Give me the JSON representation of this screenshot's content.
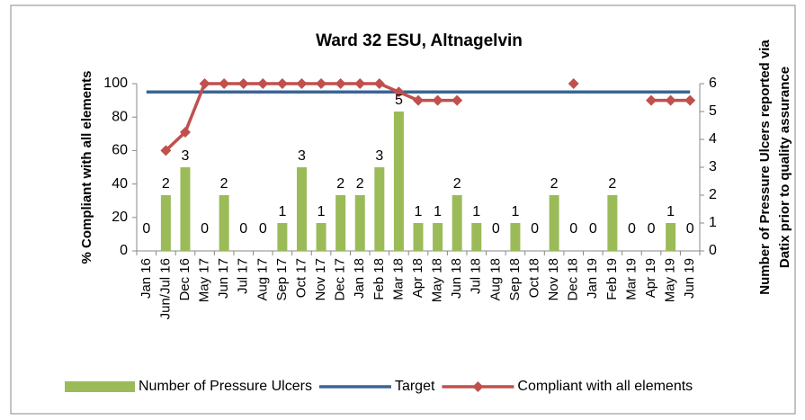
{
  "chart_data": {
    "type": "bar",
    "title": "Ward 32 ESU, Altnagelvin",
    "ylabel": "% Compliant with all elements",
    "y2label": [
      "Number of Pressure Ulcers reported via",
      "Datix prior to quality assurance"
    ],
    "categories": [
      "Jan 16",
      "Jun/Jul 16",
      "Dec 16",
      "May 17",
      "Jun 17",
      "Jul 17",
      "Aug 17",
      "Sep 17",
      "Oct 17",
      "Nov 17",
      "Dec 17",
      "Jan 18",
      "Feb 18",
      "Mar 18",
      "Apr 18",
      "May 18",
      "Jun 18",
      "Jul 18",
      "Aug 18",
      "Sep 18",
      "Oct 18",
      "Nov 18",
      "Dec 18",
      "Jan 19",
      "Feb 19",
      "Mar 19",
      "Apr 19",
      "May 19",
      "Jun 19"
    ],
    "series": [
      {
        "name": "Number of Pressure Ulcers",
        "type": "bar",
        "axis": "y2",
        "color": "#9bbb59",
        "values": [
          0,
          2,
          3,
          0,
          2,
          0,
          0,
          1,
          3,
          1,
          2,
          2,
          3,
          5,
          1,
          1,
          2,
          1,
          0,
          1,
          0,
          2,
          0,
          0,
          2,
          0,
          0,
          1,
          0
        ]
      },
      {
        "name": "Target",
        "type": "line",
        "color": "#3a6594",
        "values": [
          95,
          95,
          95,
          95,
          95,
          95,
          95,
          95,
          95,
          95,
          95,
          95,
          95,
          95,
          95,
          95,
          95,
          95,
          95,
          95,
          95,
          95,
          95,
          95,
          95,
          95,
          95,
          95,
          95
        ]
      },
      {
        "name": "Compliant with all elements",
        "type": "line",
        "marker": "diamond",
        "color": "#c0504d",
        "values": [
          null,
          60,
          71,
          100,
          100,
          100,
          100,
          100,
          100,
          100,
          100,
          100,
          100,
          95,
          90,
          90,
          90,
          null,
          null,
          null,
          null,
          null,
          100,
          null,
          null,
          null,
          90,
          90,
          90
        ]
      }
    ],
    "ylim": [
      0,
      100
    ],
    "yticks": [
      0,
      20,
      40,
      60,
      80,
      100
    ],
    "y2lim": [
      0,
      6
    ],
    "y2ticks": [
      0,
      1,
      2,
      3,
      4,
      5,
      6
    ],
    "grid": false
  }
}
